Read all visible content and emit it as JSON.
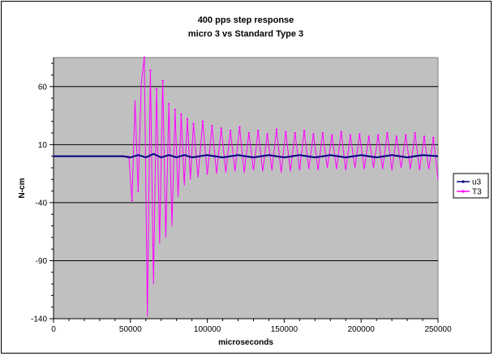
{
  "chart_data": {
    "type": "line",
    "title": "400 pps step response",
    "subtitle": "micro 3 vs Standard Type 3",
    "xlabel": "microseconds",
    "ylabel": "N-cm",
    "xlim": [
      0,
      250000
    ],
    "ylim": [
      -140,
      85
    ],
    "x_ticks": [
      0,
      50000,
      100000,
      150000,
      200000,
      250000
    ],
    "x_tick_labels": [
      "0",
      "50000",
      "100000",
      "150000",
      "200000",
      "250000"
    ],
    "y_ticks": [
      60,
      10,
      -40,
      -90,
      -140
    ],
    "y_tick_labels": [
      "60",
      "10",
      "-40",
      "-90",
      "-140"
    ],
    "grid": "horizontal",
    "plot_background": "#c0c0c0",
    "legend": "right",
    "series": [
      {
        "name": "u3",
        "color": "#000080",
        "x": [
          0,
          45000,
          50000,
          55000,
          60000,
          65000,
          70000,
          75000,
          80000,
          85000,
          90000,
          100000,
          110000,
          120000,
          130000,
          140000,
          150000,
          160000,
          170000,
          180000,
          190000,
          200000,
          210000,
          220000,
          230000,
          240000,
          250000
        ],
        "y": [
          0,
          0,
          -1,
          1,
          -1,
          2,
          -1,
          1,
          -1,
          1,
          -1,
          1,
          -1,
          1,
          -1,
          1,
          -1,
          1,
          -1,
          1,
          -1,
          1,
          -1,
          1,
          -1,
          1,
          0
        ]
      },
      {
        "name": "T3",
        "color": "#ff00ff",
        "x": [
          0,
          45000,
          49000,
          51000,
          53000,
          55000,
          57000,
          59000,
          61000,
          63000,
          65000,
          67000,
          69000,
          71000,
          73000,
          75000,
          77000,
          79000,
          81000,
          83000,
          85000,
          87000,
          89000,
          91000,
          94000,
          97000,
          100000,
          103000,
          106000,
          109000,
          112000,
          115000,
          118000,
          121000,
          124000,
          127000,
          130000,
          133000,
          136000,
          139000,
          142000,
          145000,
          148000,
          151000,
          154000,
          157000,
          160000,
          163000,
          166000,
          169000,
          172000,
          175000,
          178000,
          181000,
          184000,
          187000,
          190000,
          193000,
          196000,
          199000,
          202000,
          205000,
          208000,
          211000,
          214000,
          217000,
          220000,
          223000,
          226000,
          229000,
          232000,
          235000,
          238000,
          241000,
          244000,
          247000,
          250000
        ],
        "y": [
          0,
          0,
          0,
          -38,
          48,
          -30,
          62,
          85,
          -138,
          74,
          -110,
          58,
          -75,
          65,
          -70,
          45,
          -60,
          40,
          -35,
          36,
          -25,
          32,
          -20,
          28,
          -18,
          30,
          -16,
          26,
          -15,
          24,
          -14,
          22,
          -13,
          25,
          -14,
          20,
          -12,
          22,
          -13,
          19,
          -12,
          23,
          -14,
          21,
          -13,
          20,
          -12,
          22,
          -11,
          19,
          -12,
          20,
          -10,
          18,
          -11,
          21,
          -12,
          18,
          -10,
          19,
          -11,
          17,
          -10,
          18,
          -11,
          20,
          -12,
          17,
          -10,
          18,
          -11,
          20,
          -12,
          17,
          -11,
          16,
          -20
        ]
      }
    ]
  }
}
